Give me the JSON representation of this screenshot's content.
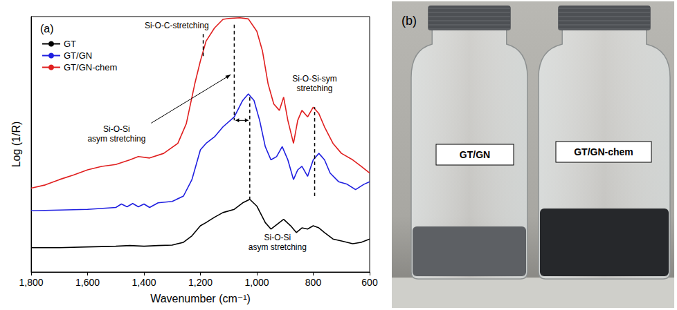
{
  "chart_data": {
    "type": "line",
    "title": "(a)",
    "x_label": "Wavenumber (cm⁻¹)",
    "y_label": "Log (1/R)",
    "xlim": [
      1800,
      600
    ],
    "xticks": [
      1800,
      1600,
      1400,
      1200,
      1000,
      800,
      600
    ],
    "ylim": [
      0,
      11
    ],
    "yticks": [],
    "tick_labels": "x",
    "grid": false,
    "legend": "upper left",
    "series": [
      {
        "name": "GT",
        "color": "#000000",
        "x": [
          1800,
          1700,
          1600,
          1500,
          1450,
          1400,
          1350,
          1300,
          1260,
          1230,
          1200,
          1180,
          1150,
          1120,
          1080,
          1050,
          1025,
          1000,
          970,
          950,
          920,
          905,
          880,
          860,
          840,
          820,
          800,
          780,
          760,
          730,
          700,
          660,
          630,
          600
        ],
        "values": [
          1.05,
          1.05,
          1.08,
          1.11,
          1.14,
          1.11,
          1.14,
          1.16,
          1.28,
          1.56,
          1.99,
          2.13,
          2.36,
          2.56,
          2.7,
          2.98,
          3.13,
          2.84,
          2.13,
          1.85,
          2.13,
          2.27,
          1.99,
          1.7,
          1.9,
          1.85,
          1.99,
          1.9,
          1.7,
          1.42,
          1.34,
          1.22,
          1.28,
          1.42
        ]
      },
      {
        "name": "GT/GN",
        "color": "#1f1fe0",
        "x": [
          1800,
          1700,
          1600,
          1500,
          1480,
          1460,
          1440,
          1420,
          1400,
          1380,
          1350,
          1300,
          1260,
          1230,
          1200,
          1180,
          1150,
          1120,
          1080,
          1050,
          1030,
          1010,
          990,
          970,
          950,
          930,
          910,
          890,
          870,
          855,
          840,
          820,
          800,
          780,
          760,
          740,
          710,
          680,
          650,
          620,
          600
        ],
        "values": [
          2.64,
          2.67,
          2.7,
          2.78,
          2.93,
          2.81,
          2.95,
          2.81,
          2.93,
          2.78,
          2.98,
          3.04,
          3.27,
          3.98,
          5.26,
          5.54,
          5.82,
          6.25,
          6.68,
          7.39,
          7.67,
          7.39,
          6.53,
          5.4,
          4.83,
          4.97,
          5.4,
          4.83,
          3.98,
          4.4,
          4.55,
          4.12,
          4.83,
          5.11,
          4.83,
          4.26,
          3.89,
          3.78,
          3.55,
          3.78,
          3.89
        ]
      },
      {
        "name": "GT/GN-chem",
        "color": "#e01f1f",
        "x": [
          1800,
          1750,
          1700,
          1650,
          1600,
          1550,
          1500,
          1450,
          1420,
          1380,
          1330,
          1280,
          1250,
          1220,
          1200,
          1180,
          1150,
          1120,
          1100,
          1060,
          1030,
          1000,
          980,
          960,
          940,
          920,
          905,
          890,
          870,
          855,
          840,
          820,
          800,
          780,
          760,
          730,
          700,
          660,
          630,
          600
        ],
        "values": [
          3.61,
          3.75,
          3.98,
          4.18,
          4.4,
          4.55,
          4.63,
          4.83,
          4.97,
          4.91,
          5.11,
          5.54,
          6.39,
          8.1,
          9.09,
          9.94,
          10.51,
          10.88,
          10.92,
          10.95,
          10.9,
          10.37,
          9.52,
          8.1,
          7.24,
          6.96,
          7.53,
          6.53,
          5.54,
          6.53,
          6.96,
          6.68,
          7.1,
          6.82,
          6.25,
          5.54,
          5.11,
          4.83,
          4.55,
          4.26
        ]
      }
    ],
    "annotations": [
      {
        "text": "Si-O-C-stretching",
        "x": 1190,
        "y": [
          9.3,
          10.3
        ]
      },
      {
        "text": "Si-O-Si asym stretching",
        "x": 1080,
        "y": [
          10.65,
          6.53
        ]
      },
      {
        "text": "Si-O-Si asym stretching",
        "x": 1025,
        "y": [
          7.53,
          3.13
        ]
      },
      {
        "text": "Si-O-Si-sym stretching",
        "x": 795,
        "y": [
          3.27,
          7.1
        ]
      }
    ]
  },
  "panel_b": {
    "label": "(b)",
    "bottle_labels": [
      "GT/GN",
      "GT/GN-chem"
    ]
  }
}
